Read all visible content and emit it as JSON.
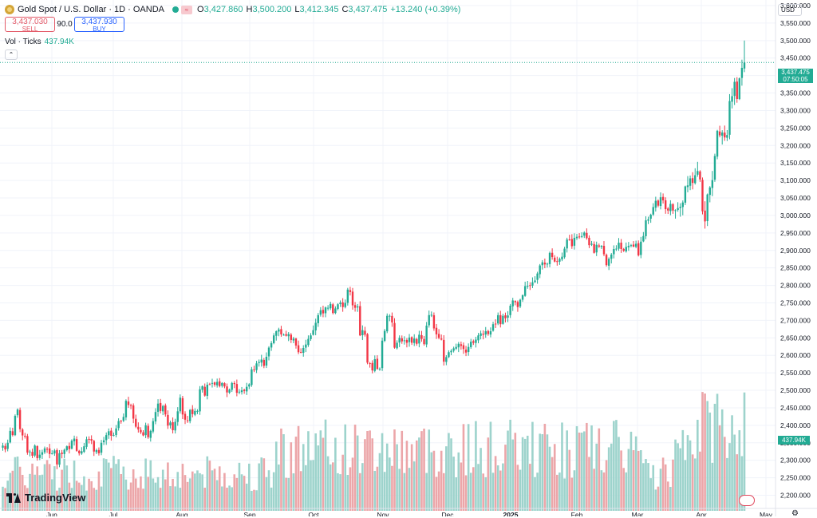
{
  "header": {
    "symbol": "Gold Spot / U.S. Dollar · 1D · OANDA",
    "open_label": "O",
    "open": "3,427.860",
    "high_label": "H",
    "high": "3,500.200",
    "low_label": "L",
    "low": "3,412.345",
    "close_label": "C",
    "close": "3,437.475",
    "change": "+13.240 (+0.39%)",
    "badge_icon": "wave-icon"
  },
  "trade": {
    "sell_price": "3,437.030",
    "sell_label": "SELL",
    "spread": "90.0",
    "buy_price": "3,437.930",
    "buy_label": "BUY"
  },
  "volume_legend": {
    "label": "Vol · Ticks",
    "value": "437.94K"
  },
  "currency": "USD",
  "last_price_tag": {
    "price": "3,437.475",
    "countdown": "07:50:05"
  },
  "volume_tag": "437.94K",
  "branding": "TradingView",
  "colors": {
    "up": "#22ab94",
    "down": "#f23645",
    "up_vol": "#9dd3cc",
    "down_vol": "#eca6a9",
    "grid": "#f0f3fa"
  },
  "chart_data": {
    "type": "candlestick",
    "x_axis_labels": [
      "Jun",
      "Jul",
      "Aug",
      "Sep",
      "Oct",
      "Nov",
      "Dec",
      "2025",
      "Feb",
      "Mar",
      "Apr",
      "May"
    ],
    "y_ticks": [
      2200,
      2250,
      2300,
      2350,
      2400,
      2450,
      2500,
      2550,
      2600,
      2650,
      2700,
      2750,
      2800,
      2850,
      2900,
      2950,
      3000,
      3050,
      3100,
      3150,
      3200,
      3250,
      3300,
      3350,
      3400,
      3450,
      3500,
      3550,
      3600
    ],
    "ylim": [
      2200,
      3600
    ],
    "last_price": 3437.475,
    "volume_last": "437.94K",
    "closes": [
      2342,
      2331,
      2350,
      2384,
      2372,
      2427,
      2445,
      2389,
      2371,
      2368,
      2322,
      2325,
      2313,
      2342,
      2306,
      2316,
      2323,
      2334,
      2332,
      2318,
      2320,
      2328,
      2288,
      2320,
      2318,
      2330,
      2340,
      2332,
      2356,
      2362,
      2327,
      2320,
      2326,
      2340,
      2360,
      2359,
      2356,
      2325,
      2329,
      2320,
      2350,
      2357,
      2372,
      2383,
      2370,
      2372,
      2391,
      2412,
      2411,
      2424,
      2470,
      2458,
      2456,
      2419,
      2396,
      2388,
      2380,
      2371,
      2400,
      2366,
      2384,
      2412,
      2438,
      2462,
      2441,
      2455,
      2431,
      2399,
      2408,
      2386,
      2410,
      2440,
      2479,
      2431,
      2416,
      2413,
      2444,
      2432,
      2441,
      2441,
      2503,
      2512,
      2485,
      2516,
      2517,
      2521,
      2516,
      2524,
      2512,
      2521,
      2511,
      2494,
      2502,
      2521,
      2518,
      2493,
      2496,
      2500,
      2498,
      2510,
      2517,
      2560,
      2558,
      2577,
      2581,
      2588,
      2570,
      2596,
      2622,
      2635,
      2657,
      2669,
      2674,
      2660,
      2659,
      2656,
      2661,
      2644,
      2648,
      2628,
      2609,
      2608,
      2621,
      2631,
      2647,
      2657,
      2672,
      2693,
      2715,
      2729,
      2720,
      2737,
      2736,
      2747,
      2721,
      2734,
      2746,
      2751,
      2738,
      2750,
      2788,
      2781,
      2743,
      2736,
      2740,
      2657,
      2672,
      2659,
      2579,
      2577,
      2557,
      2589,
      2561,
      2562,
      2642,
      2670,
      2713,
      2713,
      2694,
      2622,
      2636,
      2650,
      2640,
      2643,
      2636,
      2651,
      2636,
      2648,
      2633,
      2659,
      2647,
      2632,
      2685,
      2715,
      2716,
      2677,
      2660,
      2650,
      2645,
      2582,
      2595,
      2609,
      2613,
      2620,
      2624,
      2633,
      2627,
      2618,
      2608,
      2624,
      2639,
      2636,
      2645,
      2657,
      2663,
      2659,
      2669,
      2661,
      2669,
      2689,
      2690,
      2715,
      2689,
      2713,
      2706,
      2714,
      2742,
      2757,
      2752,
      2738,
      2759,
      2772,
      2798,
      2799,
      2799,
      2809,
      2814,
      2834,
      2857,
      2866,
      2860,
      2862,
      2893,
      2881,
      2868,
      2868,
      2876,
      2882,
      2905,
      2931,
      2931,
      2912,
      2936,
      2939,
      2938,
      2941,
      2951,
      2935,
      2915,
      2919,
      2893,
      2916,
      2911,
      2913,
      2889,
      2858,
      2876,
      2888,
      2904,
      2905,
      2922,
      2904,
      2899,
      2910,
      2913,
      2915,
      2911,
      2919,
      2886,
      2925,
      2941,
      2986,
      2989,
      3002,
      3024,
      3042,
      3028,
      3052,
      3043,
      3018,
      3014,
      3033,
      3014,
      3015,
      3021,
      3025,
      3037,
      3083,
      3086,
      3106,
      3093,
      3115,
      3127,
      3103,
      3012,
      2983,
      3060,
      3080,
      3101,
      3170,
      3242,
      3229,
      3237,
      3223,
      3230,
      3327,
      3341,
      3382,
      3333,
      3392,
      3422,
      3437
    ]
  }
}
